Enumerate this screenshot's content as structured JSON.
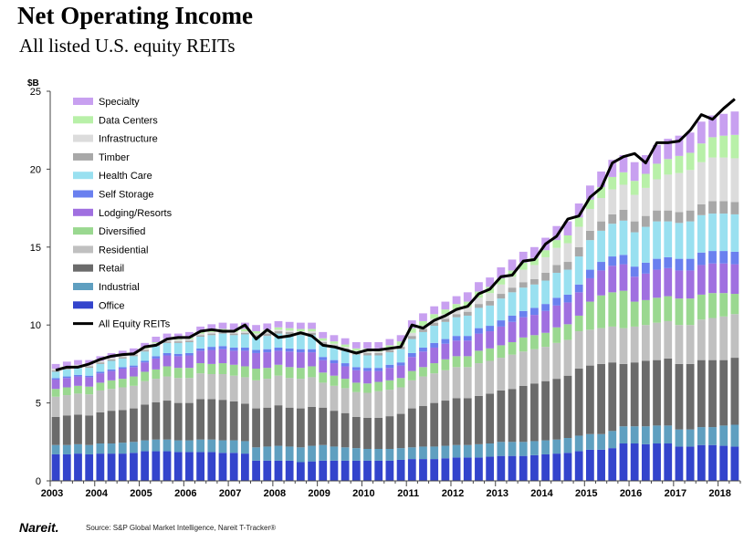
{
  "header": {
    "title": "Net Operating Income",
    "subtitle": "All listed U.S. equity REITs"
  },
  "footer": {
    "logo": "Nareit.",
    "source": "Source: S&P Global Market Intelligence, Nareit T-Tracker®"
  },
  "chart_data": {
    "type": "bar",
    "stacked": true,
    "title": "Net Operating Income",
    "subtitle": "All listed U.S. equity REITs",
    "ylabel": "$B",
    "xlabel": "",
    "ylim": [
      0,
      25
    ],
    "yticks": [
      0,
      5,
      10,
      15,
      20,
      25
    ],
    "year_labels": [
      "2003",
      "2004",
      "2005",
      "2006",
      "2007",
      "2008",
      "2009",
      "2010",
      "2011",
      "2012",
      "2013",
      "2014",
      "2015",
      "2016",
      "2017",
      "2018"
    ],
    "categories": [
      "2003 Q1",
      "2003 Q2",
      "2003 Q3",
      "2003 Q4",
      "2004 Q1",
      "2004 Q2",
      "2004 Q3",
      "2004 Q4",
      "2005 Q1",
      "2005 Q2",
      "2005 Q3",
      "2005 Q4",
      "2006 Q1",
      "2006 Q2",
      "2006 Q3",
      "2006 Q4",
      "2007 Q1",
      "2007 Q2",
      "2007 Q3",
      "2007 Q4",
      "2008 Q1",
      "2008 Q2",
      "2008 Q3",
      "2008 Q4",
      "2009 Q1",
      "2009 Q2",
      "2009 Q3",
      "2009 Q4",
      "2010 Q1",
      "2010 Q2",
      "2010 Q3",
      "2010 Q4",
      "2011 Q1",
      "2011 Q2",
      "2011 Q3",
      "2011 Q4",
      "2012 Q1",
      "2012 Q2",
      "2012 Q3",
      "2012 Q4",
      "2013 Q1",
      "2013 Q2",
      "2013 Q3",
      "2013 Q4",
      "2014 Q1",
      "2014 Q2",
      "2014 Q3",
      "2014 Q4",
      "2015 Q1",
      "2015 Q2",
      "2015 Q3",
      "2015 Q4",
      "2016 Q1",
      "2016 Q2",
      "2016 Q3",
      "2016 Q4",
      "2017 Q1",
      "2017 Q2",
      "2017 Q3",
      "2017 Q4",
      "2018 Q1",
      "2018 Q2"
    ],
    "legend": {
      "position": "top-left"
    },
    "series": [
      {
        "name": "Office",
        "color": "#3344cc",
        "values": [
          1.7,
          1.7,
          1.75,
          1.7,
          1.75,
          1.75,
          1.75,
          1.8,
          1.9,
          1.9,
          1.9,
          1.85,
          1.85,
          1.85,
          1.85,
          1.8,
          1.8,
          1.75,
          1.3,
          1.3,
          1.3,
          1.3,
          1.2,
          1.25,
          1.3,
          1.3,
          1.3,
          1.3,
          1.3,
          1.3,
          1.3,
          1.35,
          1.4,
          1.4,
          1.4,
          1.45,
          1.5,
          1.5,
          1.5,
          1.55,
          1.6,
          1.6,
          1.6,
          1.65,
          1.7,
          1.75,
          1.8,
          1.9,
          2.0,
          2.0,
          2.1,
          2.4,
          2.4,
          2.35,
          2.4,
          2.4,
          2.2,
          2.2,
          2.3,
          2.3,
          2.25,
          2.2
        ]
      },
      {
        "name": "Industrial",
        "color": "#5f9fc0",
        "values": [
          0.6,
          0.6,
          0.6,
          0.6,
          0.65,
          0.65,
          0.7,
          0.7,
          0.7,
          0.75,
          0.75,
          0.75,
          0.75,
          0.8,
          0.8,
          0.8,
          0.8,
          0.8,
          0.85,
          0.9,
          0.95,
          0.9,
          0.95,
          1.0,
          1.0,
          0.9,
          0.85,
          0.8,
          0.75,
          0.75,
          0.75,
          0.75,
          0.75,
          0.8,
          0.8,
          0.8,
          0.8,
          0.8,
          0.85,
          0.85,
          0.9,
          0.9,
          0.9,
          0.9,
          0.9,
          0.9,
          0.95,
          1.0,
          1.0,
          1.0,
          1.1,
          1.1,
          1.1,
          1.15,
          1.15,
          1.15,
          1.1,
          1.1,
          1.15,
          1.15,
          1.3,
          1.4
        ]
      },
      {
        "name": "Retail",
        "color": "#6b6b6b",
        "values": [
          1.8,
          1.9,
          1.9,
          1.9,
          2.0,
          2.1,
          2.1,
          2.15,
          2.3,
          2.4,
          2.5,
          2.4,
          2.4,
          2.6,
          2.6,
          2.6,
          2.5,
          2.4,
          2.5,
          2.5,
          2.6,
          2.5,
          2.5,
          2.5,
          2.4,
          2.3,
          2.2,
          2.0,
          2.0,
          2.0,
          2.1,
          2.2,
          2.5,
          2.6,
          2.8,
          2.9,
          3.0,
          3.0,
          3.1,
          3.2,
          3.3,
          3.4,
          3.6,
          3.7,
          3.8,
          3.9,
          4.0,
          4.3,
          4.4,
          4.5,
          4.4,
          4.0,
          4.1,
          4.2,
          4.2,
          4.3,
          4.2,
          4.2,
          4.3,
          4.3,
          4.2,
          4.3
        ]
      },
      {
        "name": "Residential",
        "color": "#c0c0c0",
        "values": [
          1.3,
          1.3,
          1.35,
          1.35,
          1.4,
          1.4,
          1.45,
          1.45,
          1.5,
          1.5,
          1.55,
          1.6,
          1.6,
          1.65,
          1.6,
          1.65,
          1.65,
          1.7,
          1.8,
          1.85,
          1.9,
          1.9,
          1.9,
          1.9,
          1.6,
          1.6,
          1.6,
          1.6,
          1.6,
          1.7,
          1.7,
          1.7,
          1.8,
          1.9,
          1.9,
          1.95,
          2.0,
          2.0,
          2.1,
          2.1,
          2.1,
          2.2,
          2.2,
          2.2,
          2.2,
          2.3,
          2.3,
          2.4,
          2.3,
          2.3,
          2.3,
          2.3,
          2.3,
          2.3,
          2.4,
          2.4,
          2.5,
          2.5,
          2.6,
          2.7,
          2.8,
          2.8
        ]
      },
      {
        "name": "Diversified",
        "color": "#9ad890",
        "values": [
          0.5,
          0.5,
          0.5,
          0.5,
          0.5,
          0.55,
          0.55,
          0.6,
          0.6,
          0.6,
          0.65,
          0.65,
          0.65,
          0.65,
          0.65,
          0.7,
          0.7,
          0.7,
          0.75,
          0.7,
          0.7,
          0.7,
          0.7,
          0.7,
          0.65,
          0.65,
          0.6,
          0.6,
          0.6,
          0.6,
          0.6,
          0.6,
          0.6,
          0.6,
          0.65,
          0.7,
          0.7,
          0.7,
          0.8,
          0.8,
          0.8,
          0.8,
          0.9,
          0.9,
          0.9,
          1.0,
          1.0,
          1.0,
          1.8,
          2.1,
          2.2,
          2.4,
          1.6,
          1.6,
          1.6,
          1.6,
          1.7,
          1.7,
          1.6,
          1.6,
          1.5,
          1.3
        ]
      },
      {
        "name": "Lodging/Resorts",
        "color": "#a070e0",
        "values": [
          0.6,
          0.6,
          0.6,
          0.6,
          0.6,
          0.6,
          0.65,
          0.6,
          0.6,
          0.7,
          0.7,
          0.75,
          0.8,
          0.8,
          0.9,
          0.9,
          0.9,
          1.0,
          1.0,
          1.0,
          0.9,
          1.0,
          1.0,
          0.9,
          0.8,
          0.8,
          0.8,
          0.8,
          0.8,
          0.7,
          0.8,
          0.8,
          0.9,
          1.0,
          1.0,
          1.0,
          1.0,
          1.0,
          1.1,
          1.1,
          1.2,
          1.3,
          1.3,
          1.3,
          1.4,
          1.4,
          1.4,
          1.5,
          1.5,
          1.6,
          1.7,
          1.7,
          1.6,
          1.7,
          1.8,
          1.8,
          1.8,
          1.8,
          1.9,
          1.9,
          1.9,
          1.9
        ]
      },
      {
        "name": "Self Storage",
        "color": "#6a80ef",
        "values": [
          0.1,
          0.1,
          0.1,
          0.1,
          0.1,
          0.1,
          0.1,
          0.1,
          0.1,
          0.15,
          0.15,
          0.15,
          0.15,
          0.15,
          0.2,
          0.2,
          0.2,
          0.2,
          0.2,
          0.2,
          0.2,
          0.2,
          0.2,
          0.2,
          0.2,
          0.2,
          0.2,
          0.2,
          0.2,
          0.2,
          0.2,
          0.2,
          0.25,
          0.25,
          0.3,
          0.3,
          0.3,
          0.3,
          0.35,
          0.35,
          0.4,
          0.4,
          0.4,
          0.45,
          0.45,
          0.5,
          0.5,
          0.5,
          0.55,
          0.55,
          0.6,
          0.6,
          0.65,
          0.7,
          0.7,
          0.7,
          0.75,
          0.75,
          0.8,
          0.8,
          0.8,
          0.8
        ]
      },
      {
        "name": "Health Care",
        "color": "#99e0f0",
        "values": [
          0.4,
          0.45,
          0.45,
          0.5,
          0.5,
          0.55,
          0.55,
          0.6,
          0.6,
          0.65,
          0.65,
          0.7,
          0.7,
          0.75,
          0.75,
          0.8,
          0.8,
          0.85,
          0.85,
          0.85,
          0.9,
          0.9,
          0.9,
          0.9,
          0.8,
          0.8,
          0.8,
          0.8,
          0.8,
          0.8,
          0.8,
          0.85,
          0.9,
          1.0,
          1.1,
          1.1,
          1.2,
          1.3,
          1.3,
          1.3,
          1.4,
          1.5,
          1.5,
          1.5,
          1.5,
          1.6,
          1.6,
          1.8,
          1.9,
          2.0,
          2.1,
          2.2,
          2.2,
          2.3,
          2.4,
          2.3,
          2.3,
          2.4,
          2.4,
          2.4,
          2.4,
          2.4
        ]
      },
      {
        "name": "Timber",
        "color": "#a8a8a8",
        "values": [
          0.1,
          0.1,
          0.1,
          0.1,
          0.1,
          0.1,
          0.1,
          0.1,
          0.1,
          0.1,
          0.1,
          0.1,
          0.1,
          0.1,
          0.1,
          0.1,
          0.1,
          0.1,
          0.1,
          0.15,
          0.15,
          0.15,
          0.15,
          0.15,
          0.15,
          0.15,
          0.15,
          0.15,
          0.15,
          0.15,
          0.15,
          0.15,
          0.2,
          0.2,
          0.2,
          0.2,
          0.2,
          0.25,
          0.25,
          0.3,
          0.3,
          0.3,
          0.35,
          0.35,
          0.5,
          0.5,
          0.5,
          0.6,
          0.6,
          0.6,
          0.6,
          0.7,
          0.7,
          0.7,
          0.7,
          0.7,
          0.7,
          0.7,
          0.7,
          0.8,
          0.8,
          0.8
        ]
      },
      {
        "name": "Infrastructure",
        "color": "#dcdcdc",
        "values": [
          0.1,
          0.1,
          0.1,
          0.1,
          0.1,
          0.1,
          0.1,
          0.1,
          0.1,
          0.1,
          0.1,
          0.1,
          0.1,
          0.1,
          0.1,
          0.1,
          0.1,
          0.1,
          0.1,
          0.1,
          0.1,
          0.1,
          0.1,
          0.1,
          0.1,
          0.1,
          0.1,
          0.1,
          0.1,
          0.1,
          0.1,
          0.1,
          0.2,
          0.2,
          0.25,
          0.3,
          0.3,
          0.3,
          0.4,
          0.5,
          0.6,
          0.7,
          0.8,
          0.9,
          1.0,
          1.1,
          1.2,
          1.3,
          1.4,
          1.5,
          1.6,
          1.6,
          1.7,
          1.8,
          2.0,
          2.3,
          2.5,
          2.6,
          2.7,
          2.8,
          2.8,
          2.8
        ]
      },
      {
        "name": "Data Centers",
        "color": "#b8f0a8",
        "values": [
          0,
          0,
          0,
          0,
          0,
          0,
          0,
          0,
          0.05,
          0.05,
          0.05,
          0.05,
          0.1,
          0.1,
          0.1,
          0.1,
          0.15,
          0.15,
          0.15,
          0.15,
          0.15,
          0.15,
          0.15,
          0.15,
          0.15,
          0.15,
          0.15,
          0.15,
          0.2,
          0.2,
          0.2,
          0.25,
          0.3,
          0.3,
          0.3,
          0.3,
          0.35,
          0.35,
          0.4,
          0.4,
          0.4,
          0.4,
          0.45,
          0.45,
          0.45,
          0.5,
          0.5,
          0.6,
          0.6,
          0.7,
          0.8,
          0.8,
          0.9,
          0.9,
          1.0,
          1.0,
          1.1,
          1.1,
          1.2,
          1.3,
          1.4,
          1.5
        ]
      },
      {
        "name": "Specialty",
        "color": "#c8a0f0",
        "values": [
          0.3,
          0.3,
          0.3,
          0.3,
          0.3,
          0.3,
          0.3,
          0.3,
          0.3,
          0.35,
          0.35,
          0.35,
          0.35,
          0.35,
          0.4,
          0.4,
          0.4,
          0.4,
          0.4,
          0.4,
          0.4,
          0.4,
          0.4,
          0.4,
          0.4,
          0.4,
          0.4,
          0.4,
          0.4,
          0.4,
          0.4,
          0.4,
          0.5,
          0.5,
          0.5,
          0.5,
          0.5,
          0.6,
          0.6,
          0.6,
          0.7,
          0.7,
          0.7,
          0.7,
          0.8,
          0.9,
          0.9,
          0.9,
          0.9,
          1.0,
          1.1,
          1.1,
          1.2,
          1.2,
          1.2,
          1.3,
          1.3,
          1.3,
          1.4,
          1.4,
          1.4,
          1.5
        ]
      }
    ],
    "line": {
      "name": "All Equity REITs",
      "color": "#000000",
      "values": [
        7.1,
        7.3,
        7.3,
        7.5,
        7.8,
        8.0,
        8.1,
        8.15,
        8.6,
        8.7,
        9.1,
        9.2,
        9.2,
        9.6,
        9.7,
        9.6,
        9.6,
        10.0,
        9.1,
        9.7,
        9.2,
        9.3,
        9.5,
        9.3,
        8.7,
        8.6,
        8.4,
        8.2,
        8.4,
        8.4,
        8.5,
        8.6,
        10.0,
        9.8,
        10.3,
        10.6,
        11.0,
        11.2,
        12.0,
        12.3,
        13.1,
        13.2,
        14.1,
        14.2,
        15.2,
        15.7,
        16.8,
        17.0,
        18.2,
        18.8,
        20.4,
        20.8,
        21.0,
        20.4,
        21.7,
        21.7,
        21.8,
        22.5,
        23.5,
        23.2,
        23.9,
        24.5
      ]
    }
  }
}
